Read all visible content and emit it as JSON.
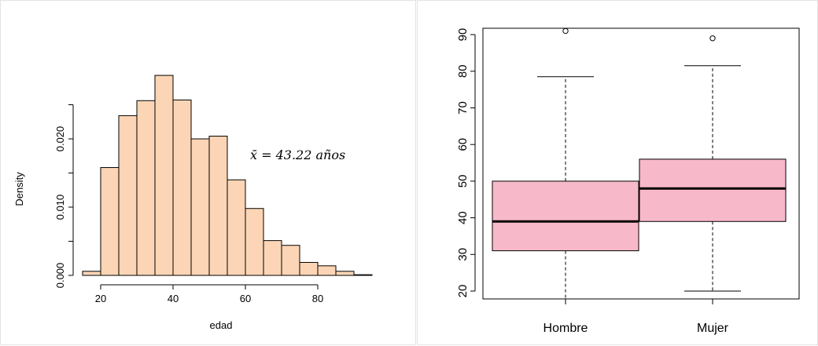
{
  "chart_data": [
    {
      "type": "bar",
      "subtype": "histogram",
      "xlabel": "edad",
      "ylabel": "Density",
      "xlim": [
        15,
        95
      ],
      "ylim": [
        0,
        0.03
      ],
      "bar_color": "#fbd5b5",
      "x_ticks": [
        20,
        40,
        60,
        80
      ],
      "y_ticks": [
        0.0,
        0.005,
        0.01,
        0.015,
        0.02,
        0.025
      ],
      "y_tick_labels": [
        "0.000",
        "",
        "0.010",
        "",
        "0.020",
        ""
      ],
      "bins": [
        {
          "from": 15,
          "to": 20,
          "density": 0.0006
        },
        {
          "from": 20,
          "to": 25,
          "density": 0.0158
        },
        {
          "from": 25,
          "to": 30,
          "density": 0.0234
        },
        {
          "from": 30,
          "to": 35,
          "density": 0.0256
        },
        {
          "from": 35,
          "to": 40,
          "density": 0.0293
        },
        {
          "from": 40,
          "to": 45,
          "density": 0.0257
        },
        {
          "from": 45,
          "to": 50,
          "density": 0.02
        },
        {
          "from": 50,
          "to": 55,
          "density": 0.0204
        },
        {
          "from": 55,
          "to": 60,
          "density": 0.014
        },
        {
          "from": 60,
          "to": 65,
          "density": 0.0098
        },
        {
          "from": 65,
          "to": 70,
          "density": 0.0051
        },
        {
          "from": 70,
          "to": 75,
          "density": 0.0044
        },
        {
          "from": 75,
          "to": 80,
          "density": 0.0019
        },
        {
          "from": 80,
          "to": 85,
          "density": 0.0014
        },
        {
          "from": 85,
          "to": 90,
          "density": 0.0006
        },
        {
          "from": 90,
          "to": 95,
          "density": 0.0001
        }
      ],
      "annotation": "x̄ = 43.22 años"
    },
    {
      "type": "box",
      "categories": [
        "Hombre",
        "Mujer"
      ],
      "ylim": [
        18,
        92
      ],
      "y_ticks": [
        20,
        30,
        40,
        50,
        60,
        70,
        80,
        90
      ],
      "box_color": "#f7b9c9",
      "boxes": [
        {
          "name": "Hombre",
          "whisker_low": 18,
          "q1": 31,
          "median": 39,
          "q3": 50,
          "whisker_high": 78.5,
          "outliers": [
            91
          ]
        },
        {
          "name": "Mujer",
          "whisker_low": 20,
          "q1": 39,
          "median": 48,
          "q3": 56,
          "whisker_high": 81.5,
          "outliers": [
            89
          ]
        }
      ]
    }
  ]
}
